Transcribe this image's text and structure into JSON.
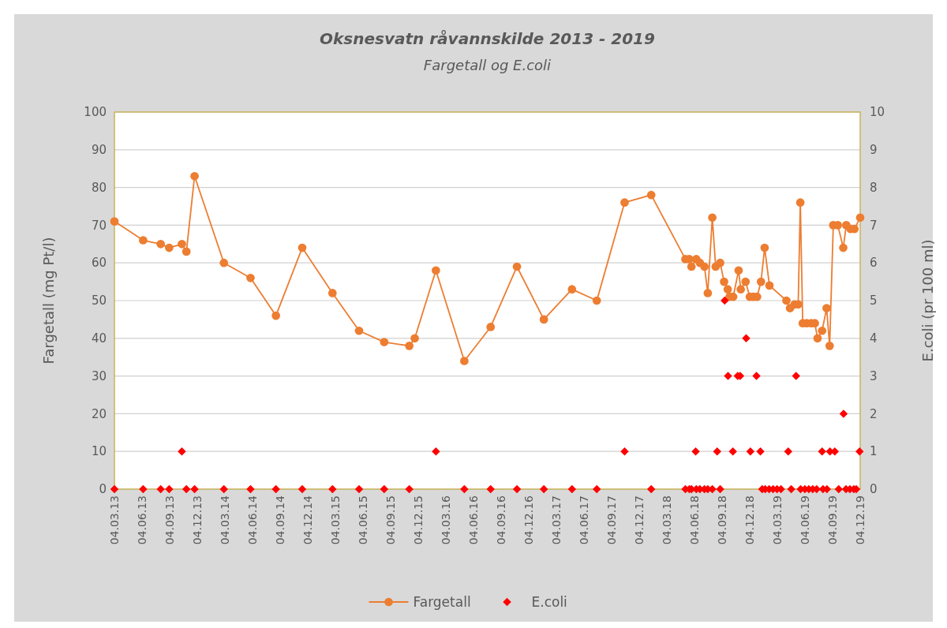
{
  "chart_data": {
    "type": "line",
    "title": "Oksnesvatn råvannskilde 2013 - 2019",
    "subtitle": "Fargetall og E.coli",
    "ylabel": "Fargetall (mg Pt/l)",
    "y2label": "E.coli (pr 100 ml)",
    "xlim": [
      "2013-03-04",
      "2019-12-04"
    ],
    "xticks": [
      {
        "value": "2013-03-04",
        "label": "04.03.13"
      },
      {
        "value": "2013-06-04",
        "label": "04.06.13"
      },
      {
        "value": "2013-09-04",
        "label": "04.09.13"
      },
      {
        "value": "2013-12-04",
        "label": "04.12.13"
      },
      {
        "value": "2014-03-04",
        "label": "04.03.14"
      },
      {
        "value": "2014-06-04",
        "label": "04.06.14"
      },
      {
        "value": "2014-09-04",
        "label": "04.09.14"
      },
      {
        "value": "2014-12-04",
        "label": "04.12.14"
      },
      {
        "value": "2015-03-04",
        "label": "04.03.15"
      },
      {
        "value": "2015-06-04",
        "label": "04.06.15"
      },
      {
        "value": "2015-09-04",
        "label": "04.09.15"
      },
      {
        "value": "2015-12-04",
        "label": "04.12.15"
      },
      {
        "value": "2016-03-04",
        "label": "04.03.16"
      },
      {
        "value": "2016-06-04",
        "label": "04.06.16"
      },
      {
        "value": "2016-09-04",
        "label": "04.09.16"
      },
      {
        "value": "2016-12-04",
        "label": "04.12.16"
      },
      {
        "value": "2017-03-04",
        "label": "04.03.17"
      },
      {
        "value": "2017-06-04",
        "label": "04.06.17"
      },
      {
        "value": "2017-09-04",
        "label": "04.09.17"
      },
      {
        "value": "2017-12-04",
        "label": "04.12.17"
      },
      {
        "value": "2018-03-04",
        "label": "04.03.18"
      },
      {
        "value": "2018-06-04",
        "label": "04.06.18"
      },
      {
        "value": "2018-09-04",
        "label": "04.09.18"
      },
      {
        "value": "2018-12-04",
        "label": "04.12.18"
      },
      {
        "value": "2019-03-04",
        "label": "04.03.19"
      },
      {
        "value": "2019-06-04",
        "label": "04.06.19"
      },
      {
        "value": "2019-09-04",
        "label": "04.09.19"
      },
      {
        "value": "2019-12-04",
        "label": "04.12.19"
      }
    ],
    "ylim": [
      0,
      100
    ],
    "yticks": [
      0,
      10,
      20,
      30,
      40,
      50,
      60,
      70,
      80,
      90,
      100
    ],
    "y2lim": [
      0,
      10
    ],
    "y2ticks": [
      0,
      1,
      2,
      3,
      4,
      5,
      6,
      7,
      8,
      9,
      10
    ],
    "grid": "y",
    "legend": "bottom",
    "series": [
      {
        "name": "Fargetall",
        "color": "#ed7d31",
        "marker": "circle",
        "line_style": "solid",
        "x": [
          "2013-03-04",
          "2013-06-07",
          "2013-08-04",
          "2013-09-01",
          "2013-10-13",
          "2013-10-28",
          "2013-11-24",
          "2014-03-01",
          "2014-05-28",
          "2014-08-20",
          "2014-11-15",
          "2015-02-23",
          "2015-05-22",
          "2015-08-13",
          "2015-11-04",
          "2015-11-22",
          "2016-01-31",
          "2016-05-04",
          "2016-07-30",
          "2016-10-25",
          "2017-01-22",
          "2017-04-25",
          "2017-07-16",
          "2017-10-16",
          "2018-01-12",
          "2018-05-05",
          "2018-05-18",
          "2018-05-25",
          "2018-06-10",
          "2018-06-22",
          "2018-07-07",
          "2018-07-18",
          "2018-08-02",
          "2018-08-13",
          "2018-08-28",
          "2018-09-10",
          "2018-09-22",
          "2018-09-28",
          "2018-10-10",
          "2018-10-28",
          "2018-11-04",
          "2018-11-20",
          "2018-12-04",
          "2018-12-16",
          "2018-12-28",
          "2019-01-10",
          "2019-01-22",
          "2019-02-07",
          "2019-04-04",
          "2019-04-16",
          "2019-05-01",
          "2019-05-13",
          "2019-05-20",
          "2019-05-28",
          "2019-06-10",
          "2019-06-25",
          "2019-07-07",
          "2019-07-16",
          "2019-07-31",
          "2019-08-15",
          "2019-08-25",
          "2019-09-06",
          "2019-09-21",
          "2019-10-09",
          "2019-10-19",
          "2019-11-02",
          "2019-11-15",
          "2019-12-04"
        ],
        "values": [
          71,
          66,
          65,
          64,
          65,
          63,
          83,
          60,
          56,
          46,
          64,
          52,
          42,
          39,
          38,
          40,
          58,
          34,
          43,
          59,
          45,
          53,
          50,
          76,
          78,
          61,
          61,
          59,
          61,
          60,
          59,
          52,
          72,
          59,
          60,
          55,
          53,
          51,
          51,
          58,
          53,
          55,
          51,
          51,
          51,
          55,
          64,
          54,
          50,
          48,
          49,
          49,
          76,
          44,
          44,
          44,
          44,
          40,
          42,
          48,
          38,
          70,
          70,
          64,
          70,
          69,
          69,
          72
        ]
      },
      {
        "name": "E.coli",
        "type": "scatter",
        "axis": "y2",
        "color": "#ff0000",
        "marker": "diamond",
        "x": [
          "2013-03-04",
          "2013-06-07",
          "2013-08-04",
          "2013-09-01",
          "2013-10-13",
          "2013-10-28",
          "2013-11-24",
          "2014-03-01",
          "2014-05-28",
          "2014-08-20",
          "2014-11-15",
          "2015-02-23",
          "2015-05-22",
          "2015-08-13",
          "2015-11-04",
          "2016-01-31",
          "2016-05-04",
          "2016-07-30",
          "2016-10-25",
          "2017-01-22",
          "2017-04-25",
          "2017-07-16",
          "2017-10-16",
          "2018-01-12",
          "2018-05-05",
          "2018-05-18",
          "2018-05-25",
          "2018-06-08",
          "2018-06-10",
          "2018-06-22",
          "2018-07-07",
          "2018-07-18",
          "2018-08-02",
          "2018-08-18",
          "2018-08-28",
          "2018-09-12",
          "2018-09-23",
          "2018-10-09",
          "2018-10-25",
          "2018-11-02",
          "2018-11-22",
          "2018-12-06",
          "2018-12-26",
          "2019-01-08",
          "2019-01-14",
          "2019-01-24",
          "2019-02-06",
          "2019-02-19",
          "2019-03-04",
          "2019-03-17",
          "2019-04-10",
          "2019-04-20",
          "2019-05-06",
          "2019-05-21",
          "2019-06-04",
          "2019-06-17",
          "2019-06-30",
          "2019-07-13",
          "2019-07-31",
          "2019-08-03",
          "2019-08-16",
          "2019-08-26",
          "2019-09-11",
          "2019-09-24",
          "2019-10-10",
          "2019-10-18",
          "2019-10-31",
          "2019-11-13",
          "2019-11-21",
          "2019-12-02"
        ],
        "values": [
          0,
          0,
          0,
          0,
          1,
          0,
          0,
          0,
          0,
          0,
          0,
          0,
          0,
          0,
          0,
          1,
          0,
          0,
          0,
          0,
          0,
          0,
          1,
          0,
          0,
          0,
          0,
          1,
          0,
          0,
          0,
          0,
          0,
          1,
          0,
          5,
          3,
          1,
          3,
          3,
          4,
          1,
          3,
          1,
          0,
          0,
          0,
          0,
          0,
          0,
          1,
          0,
          3,
          0,
          0,
          0,
          0,
          0,
          1,
          0,
          0,
          1,
          1,
          0,
          2,
          0,
          0,
          0,
          0,
          1
        ]
      }
    ]
  }
}
